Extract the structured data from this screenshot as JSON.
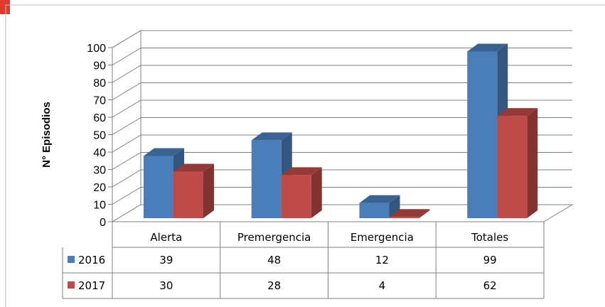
{
  "chart_data": {
    "type": "bar",
    "title": "",
    "xlabel": "",
    "ylabel": "N° Episodios",
    "ylim": [
      0,
      100
    ],
    "yticks": [
      "0",
      "10",
      "20",
      "30",
      "40",
      "50",
      "60",
      "70",
      "80",
      "90",
      "100"
    ],
    "categories": [
      "Alerta",
      "Premergencia",
      "Emergencia",
      "Totales"
    ],
    "series": [
      {
        "name": "2016",
        "values": [
          39,
          48,
          12,
          99
        ],
        "color": "#4a7ebb",
        "labels": [
          "39",
          "48",
          "12",
          "99"
        ]
      },
      {
        "name": "2017",
        "values": [
          30,
          28,
          4,
          62
        ],
        "color": "#be4b48",
        "labels": [
          "30",
          "28",
          "4",
          "62"
        ]
      }
    ],
    "grid": true,
    "legend": "data-table",
    "style": "3d-clustered-column"
  }
}
